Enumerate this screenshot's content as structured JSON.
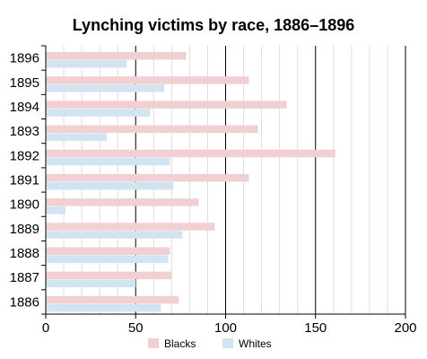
{
  "chart_data": {
    "type": "bar",
    "orientation": "horizontal",
    "title": "Lynching victims by race, 1886–1896",
    "categories": [
      "1896",
      "1895",
      "1894",
      "1893",
      "1892",
      "1891",
      "1890",
      "1889",
      "1888",
      "1887",
      "1886"
    ],
    "series": [
      {
        "name": "Blacks",
        "color": "#f2cfd3",
        "values": [
          78,
          113,
          134,
          118,
          161,
          113,
          85,
          94,
          69,
          70,
          74
        ]
      },
      {
        "name": "Whites",
        "color": "#d2e4f2",
        "values": [
          45,
          66,
          58,
          34,
          69,
          71,
          11,
          76,
          68,
          50,
          64
        ]
      }
    ],
    "x_ticks": [
      "0",
      "50",
      "100",
      "150",
      "200"
    ],
    "xlim": [
      0,
      200
    ],
    "grid": true,
    "legend": "bottom"
  }
}
